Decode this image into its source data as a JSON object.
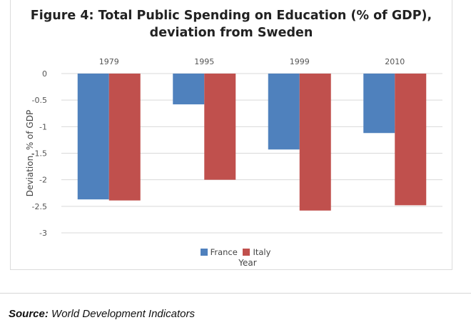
{
  "figure": {
    "title_line1": "Figure 4: Total Public Spending on Education (% of GDP),",
    "title_line2": "deviation from Sweden"
  },
  "source": {
    "label": "Source:",
    "text": "World Development Indicators"
  },
  "chart_data": {
    "type": "bar",
    "categories": [
      "1979",
      "1995",
      "1999",
      "2010"
    ],
    "category_axis_position": "top",
    "series": [
      {
        "name": "France",
        "color": "#4f81bd",
        "values": [
          -2.37,
          -0.58,
          -1.43,
          -1.12
        ]
      },
      {
        "name": "Italy",
        "color": "#c0504d",
        "values": [
          -2.39,
          -2.0,
          -2.58,
          -2.48
        ]
      }
    ],
    "ylim": [
      -3,
      0
    ],
    "yticks": [
      0,
      -0.5,
      -1,
      -1.5,
      -2,
      -2.5,
      -3
    ],
    "ytick_labels": [
      "0",
      "-0.5",
      "-1",
      "-1.5",
      "-2",
      "-2.5",
      "-3"
    ],
    "xlabel": "Year",
    "ylabel": "Deviation, % of GDP",
    "grid": true,
    "legend": "bottom"
  }
}
